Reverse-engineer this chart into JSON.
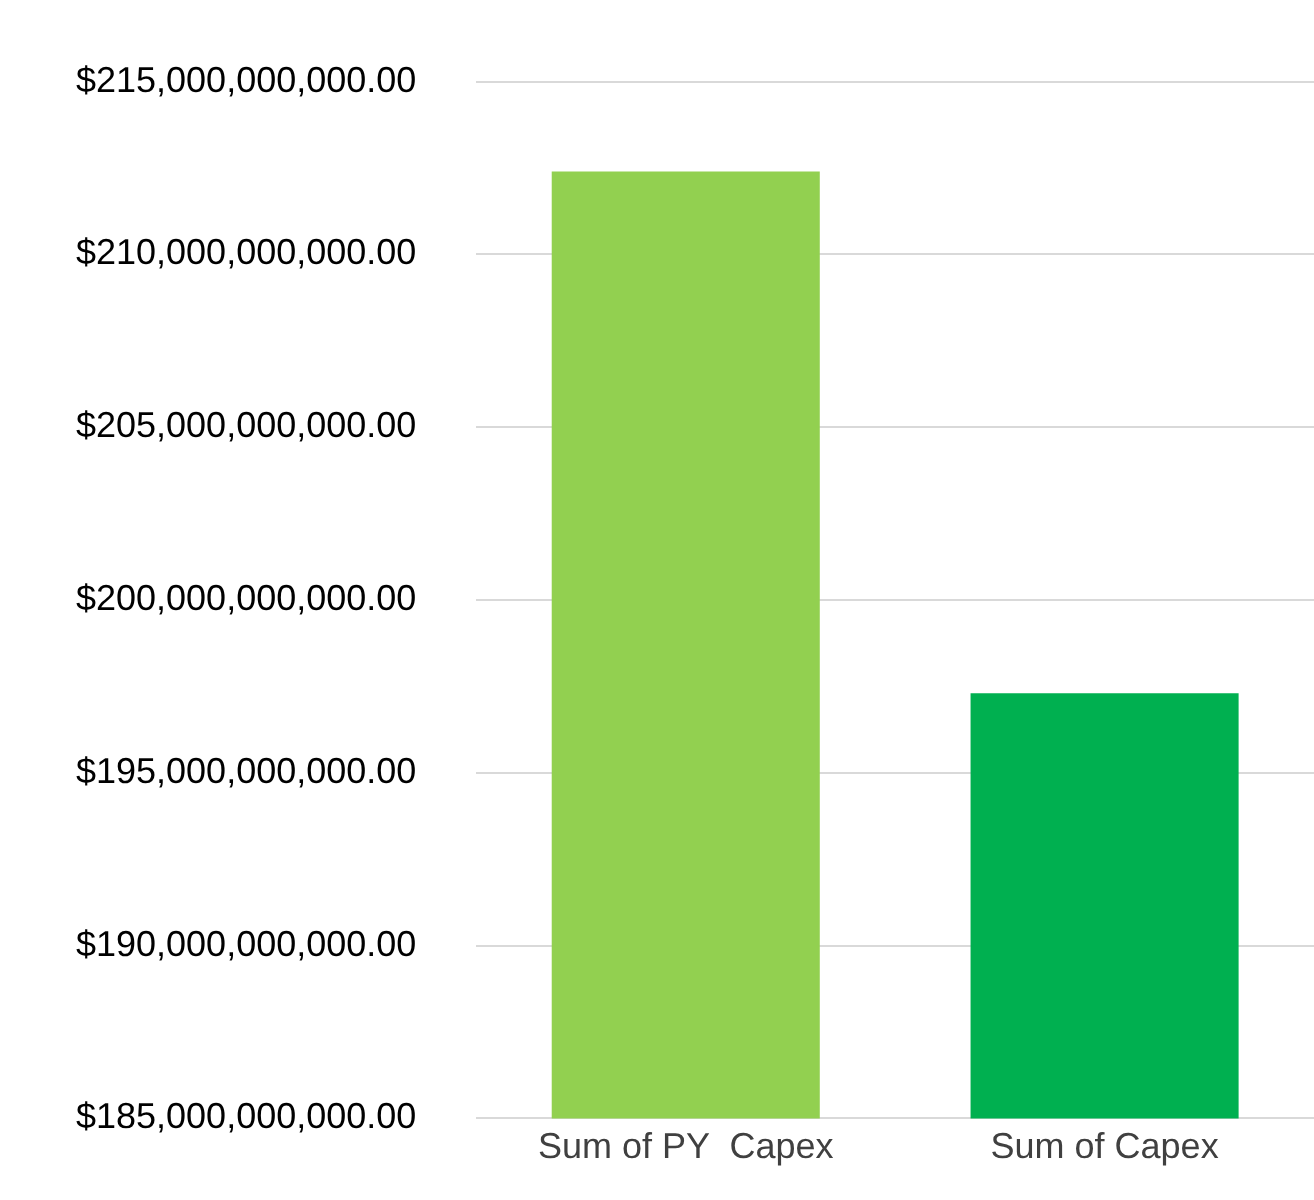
{
  "chart_data": {
    "type": "bar",
    "categories": [
      "Sum of PY  Capex",
      "Sum of Capex"
    ],
    "values": [
      212400000000,
      197300000000
    ],
    "colors": [
      "#92d050",
      "#00b050"
    ],
    "ylim": [
      185000000000,
      215000000000
    ],
    "yticks": [
      {
        "value": 185000000000,
        "label": "$185,000,000,000.00"
      },
      {
        "value": 190000000000,
        "label": "$190,000,000,000.00"
      },
      {
        "value": 195000000000,
        "label": "$195,000,000,000.00"
      },
      {
        "value": 200000000000,
        "label": "$200,000,000,000.00"
      },
      {
        "value": 205000000000,
        "label": "$205,000,000,000.00"
      },
      {
        "value": 210000000000,
        "label": "$210,000,000,000.00"
      },
      {
        "value": 215000000000,
        "label": "$215,000,000,000.00"
      }
    ],
    "grid": "y",
    "legend": false
  }
}
